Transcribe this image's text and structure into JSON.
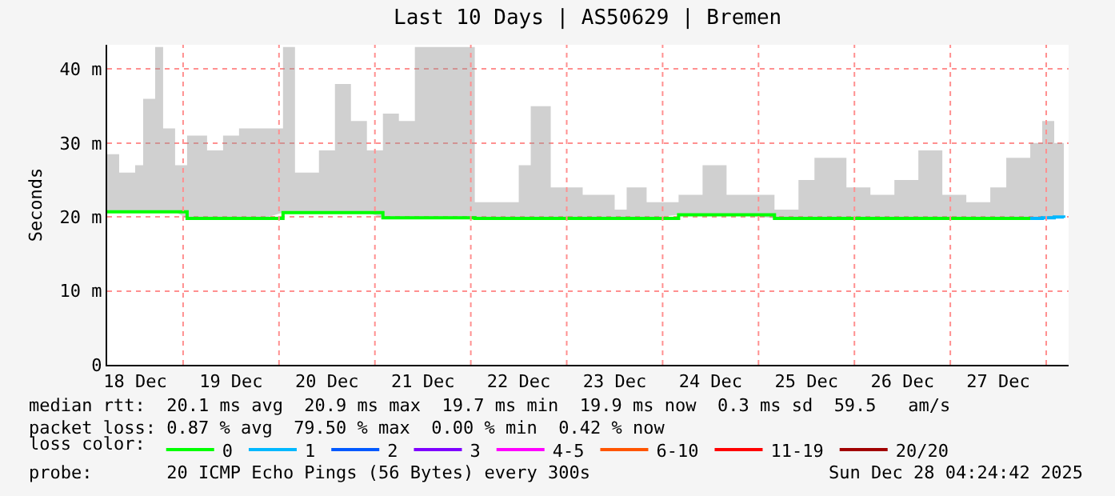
{
  "chart_data": {
    "type": "step",
    "title": "Last 10 Days | AS50629 | Bremen",
    "ylabel": "Seconds",
    "x": [
      "2025-12-18T05:00",
      "2025-12-18T08:00",
      "2025-12-18T12:00",
      "2025-12-18T14:00",
      "2025-12-18T17:00",
      "2025-12-18T19:00",
      "2025-12-18T22:00",
      "2025-12-19T01:00",
      "2025-12-19T06:00",
      "2025-12-19T10:00",
      "2025-12-19T14:00",
      "2025-12-19T20:00",
      "2025-12-20T01:00",
      "2025-12-20T04:00",
      "2025-12-20T10:00",
      "2025-12-20T14:00",
      "2025-12-20T18:00",
      "2025-12-20T22:00",
      "2025-12-21T02:00",
      "2025-12-21T06:00",
      "2025-12-21T10:00",
      "2025-12-21T13:00",
      "2025-12-21T15:00",
      "2025-12-21T20:00",
      "2025-12-22T01:00",
      "2025-12-22T06:00",
      "2025-12-22T12:00",
      "2025-12-22T15:00",
      "2025-12-22T20:00",
      "2025-12-23T04:00",
      "2025-12-23T12:00",
      "2025-12-23T15:00",
      "2025-12-23T20:00",
      "2025-12-24T04:00",
      "2025-12-24T10:00",
      "2025-12-24T16:00",
      "2025-12-24T20:00",
      "2025-12-25T04:00",
      "2025-12-25T10:00",
      "2025-12-25T14:00",
      "2025-12-25T18:00",
      "2025-12-25T22:00",
      "2025-12-26T04:00",
      "2025-12-26T10:00",
      "2025-12-26T16:00",
      "2025-12-26T22:00",
      "2025-12-27T04:00",
      "2025-12-27T10:00",
      "2025-12-27T14:00",
      "2025-12-27T20:00",
      "2025-12-27T23:00",
      "2025-12-28T02:00",
      "2025-12-28T04:24"
    ],
    "series": [
      {
        "name": "0",
        "color": "#00ff00",
        "values": [
          20.7,
          20.7,
          20.7,
          20.7,
          20.7,
          20.7,
          20.7,
          19.8,
          19.8,
          19.8,
          19.8,
          19.8,
          20.6,
          20.6,
          20.6,
          20.6,
          20.6,
          20.6,
          19.9,
          19.9,
          19.9,
          19.9,
          19.9,
          19.9,
          19.8,
          19.8,
          19.8,
          19.8,
          19.8,
          19.8,
          19.8,
          19.8,
          19.8,
          20.3,
          20.3,
          20.3,
          20.3,
          19.8,
          19.8,
          19.8,
          19.8,
          19.8,
          19.8,
          19.8,
          19.8,
          19.8,
          19.8,
          19.8,
          19.8,
          19.8,
          null,
          null,
          null
        ],
        "lower": [
          20.7,
          20.7,
          20.7,
          20.7,
          20.7,
          20.7,
          20.7,
          19.8,
          19.8,
          19.8,
          19.8,
          19.8,
          20.6,
          20.6,
          20.6,
          20.6,
          20.6,
          20.6,
          19.9,
          19.9,
          19.9,
          19.9,
          19.9,
          19.9,
          19.8,
          19.8,
          19.8,
          19.8,
          19.8,
          19.8,
          19.8,
          19.8,
          19.8,
          20.3,
          20.3,
          20.3,
          20.3,
          19.8,
          19.8,
          19.8,
          19.8,
          19.8,
          19.8,
          19.8,
          19.8,
          19.8,
          19.8,
          19.8,
          19.8,
          19.8,
          19.9,
          20.0,
          19.9
        ],
        "upper": [
          28.5,
          26,
          27,
          36,
          43,
          32,
          27,
          31,
          29,
          31,
          32,
          32,
          43,
          26,
          29,
          38,
          33,
          29,
          34,
          33,
          43,
          43,
          43,
          43,
          22,
          22,
          27,
          35,
          24,
          23,
          21,
          24,
          22,
          23,
          27,
          23,
          23,
          21,
          25,
          28,
          28,
          24,
          23,
          25,
          29,
          23,
          22,
          24,
          28,
          30,
          33,
          30,
          24
        ]
      },
      {
        "name": "1",
        "color": "#00b8ff",
        "values": [
          null,
          null,
          null,
          null,
          null,
          null,
          null,
          null,
          null,
          null,
          null,
          null,
          null,
          null,
          null,
          null,
          null,
          null,
          null,
          null,
          null,
          null,
          null,
          null,
          null,
          null,
          null,
          null,
          null,
          null,
          null,
          null,
          null,
          null,
          null,
          null,
          null,
          null,
          null,
          null,
          null,
          null,
          null,
          null,
          null,
          null,
          null,
          null,
          null,
          19.8,
          19.9,
          20.0,
          19.9
        ]
      },
      {
        "name": "2",
        "color": "#0059ff",
        "values": [
          null,
          null,
          null,
          null,
          null,
          null,
          null,
          null,
          null,
          null,
          null,
          null,
          null,
          null,
          null,
          null,
          null,
          null,
          null,
          null,
          null,
          null,
          null,
          null,
          null,
          null,
          null,
          null,
          null,
          null,
          null,
          null,
          null,
          null,
          null,
          null,
          null,
          null,
          null,
          null,
          null,
          null,
          null,
          null,
          null,
          null,
          null,
          null,
          null,
          null,
          null,
          null,
          null
        ]
      },
      {
        "name": "3",
        "color": "#7e00ff",
        "values": [
          null,
          null,
          null,
          null,
          null,
          null,
          null,
          null,
          null,
          null,
          null,
          null,
          null,
          null,
          null,
          null,
          null,
          null,
          null,
          null,
          null,
          null,
          null,
          null,
          null,
          null,
          null,
          null,
          null,
          null,
          null,
          null,
          null,
          null,
          null,
          null,
          null,
          null,
          null,
          null,
          null,
          null,
          null,
          null,
          null,
          null,
          null,
          null,
          null,
          null,
          null,
          null,
          null
        ]
      },
      {
        "name": "4-5",
        "color": "#ff00ff",
        "values": [
          null,
          null,
          null,
          null,
          null,
          null,
          null,
          null,
          null,
          null,
          null,
          null,
          null,
          null,
          null,
          null,
          null,
          null,
          null,
          null,
          null,
          null,
          null,
          null,
          null,
          null,
          null,
          null,
          null,
          null,
          null,
          null,
          null,
          null,
          null,
          null,
          null,
          null,
          null,
          null,
          null,
          null,
          null,
          null,
          null,
          null,
          null,
          null,
          null,
          null,
          null,
          null,
          null
        ]
      },
      {
        "name": "6-10",
        "color": "#ff5500",
        "values": [
          null,
          null,
          null,
          null,
          null,
          null,
          null,
          null,
          null,
          null,
          null,
          null,
          null,
          null,
          null,
          null,
          null,
          null,
          null,
          null,
          null,
          null,
          null,
          null,
          null,
          null,
          null,
          null,
          null,
          null,
          null,
          null,
          null,
          null,
          null,
          null,
          null,
          null,
          null,
          null,
          null,
          null,
          null,
          null,
          null,
          null,
          null,
          null,
          null,
          null,
          null,
          null,
          null
        ]
      },
      {
        "name": "11-19",
        "color": "#ff0000",
        "values": [
          null,
          null,
          null,
          null,
          null,
          null,
          null,
          null,
          null,
          null,
          null,
          null,
          null,
          null,
          null,
          null,
          null,
          null,
          null,
          null,
          null,
          null,
          null,
          null,
          null,
          null,
          null,
          null,
          null,
          null,
          null,
          null,
          null,
          null,
          null,
          null,
          null,
          null,
          null,
          null,
          null,
          null,
          null,
          null,
          null,
          null,
          null,
          null,
          null,
          null,
          null,
          null,
          null
        ]
      },
      {
        "name": "20/20",
        "color": "#a10000",
        "values": [
          null,
          null,
          null,
          null,
          null,
          null,
          null,
          null,
          null,
          null,
          null,
          null,
          null,
          null,
          null,
          null,
          null,
          null,
          null,
          null,
          null,
          null,
          null,
          null,
          null,
          null,
          null,
          null,
          null,
          null,
          null,
          null,
          null,
          null,
          null,
          null,
          null,
          null,
          null,
          null,
          null,
          null,
          null,
          null,
          null,
          null,
          null,
          null,
          null,
          null,
          null,
          null,
          null
        ]
      }
    ],
    "xlim": [
      "2025-12-18T05:00",
      "2025-12-28T05:36"
    ],
    "xticks": [
      {
        "value": "2025-12-18T12:00",
        "label": "18 Dec"
      },
      {
        "value": "2025-12-19T00:00",
        "label": null
      },
      {
        "value": "2025-12-19T12:00",
        "label": "19 Dec"
      },
      {
        "value": "2025-12-20T00:00",
        "label": null
      },
      {
        "value": "2025-12-20T12:00",
        "label": "20 Dec"
      },
      {
        "value": "2025-12-21T00:00",
        "label": null
      },
      {
        "value": "2025-12-21T12:00",
        "label": "21 Dec"
      },
      {
        "value": "2025-12-22T00:00",
        "label": null
      },
      {
        "value": "2025-12-22T12:00",
        "label": "22 Dec"
      },
      {
        "value": "2025-12-23T00:00",
        "label": null
      },
      {
        "value": "2025-12-23T12:00",
        "label": "23 Dec"
      },
      {
        "value": "2025-12-24T00:00",
        "label": null
      },
      {
        "value": "2025-12-24T12:00",
        "label": "24 Dec"
      },
      {
        "value": "2025-12-25T00:00",
        "label": null
      },
      {
        "value": "2025-12-25T12:00",
        "label": "25 Dec"
      },
      {
        "value": "2025-12-26T00:00",
        "label": null
      },
      {
        "value": "2025-12-26T12:00",
        "label": "26 Dec"
      },
      {
        "value": "2025-12-27T00:00",
        "label": null
      },
      {
        "value": "2025-12-27T12:00",
        "label": "27 Dec"
      },
      {
        "value": "2025-12-28T00:00",
        "label": null
      }
    ],
    "ylim": [
      0,
      43.3
    ],
    "yticks": [
      0,
      {
        "value": 10,
        "label": "10 m"
      },
      {
        "value": 20,
        "label": "20 m"
      },
      {
        "value": 30,
        "label": "30 m"
      },
      {
        "value": 40,
        "label": "40 m"
      }
    ],
    "grid": true,
    "legend": "bottom",
    "legend_title": "loss color:",
    "marker": "none",
    "line_style": "solid",
    "annotations": [
      "median rtt:  20.1 ms avg  20.9 ms max  19.7 ms min  19.9 ms now  0.3 ms sd  59.5   am/s",
      "packet loss: 0.87 % avg  79.50 % max  0.00 % min  0.42 % now",
      "probe:       20 ICMP Echo Pings (56 Bytes) every 300s",
      "Sun Dec 28 04:24:42 2025"
    ]
  }
}
